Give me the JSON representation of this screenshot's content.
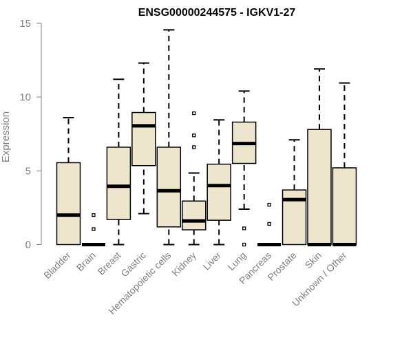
{
  "chart_data": {
    "type": "boxplot",
    "title": "ENSG00000244575 - IGKV1-27",
    "xlabel": "",
    "ylabel": "Expression",
    "ylim": [
      0,
      15
    ],
    "yticks": [
      0,
      5,
      10,
      15
    ],
    "grid": false,
    "colors": {
      "box_fill": "#ede6cc",
      "stroke": "#000000",
      "axis_text": "#808080"
    },
    "boxes": [
      {
        "label": "Bladder",
        "min": 0,
        "q1": 0,
        "median": 2.0,
        "q3": 5.55,
        "max": 8.6,
        "outliers": []
      },
      {
        "label": "Brain",
        "min": 0,
        "q1": 0,
        "median": 0,
        "q3": 0,
        "max": 0,
        "outliers": [
          1.05,
          2.0
        ]
      },
      {
        "label": "Breast",
        "min": 0,
        "q1": 1.7,
        "median": 3.95,
        "q3": 6.6,
        "max": 11.2,
        "outliers": []
      },
      {
        "label": "Gastric",
        "min": 2.1,
        "q1": 5.35,
        "median": 8.05,
        "q3": 8.95,
        "max": 12.3,
        "outliers": []
      },
      {
        "label": "Hematopoietic cells",
        "min": 0,
        "q1": 1.2,
        "median": 3.65,
        "q3": 6.6,
        "max": 14.55,
        "outliers": []
      },
      {
        "label": "Kidney",
        "min": 0,
        "q1": 1.0,
        "median": 1.6,
        "q3": 2.95,
        "max": 4.85,
        "outliers": [
          6.6,
          7.4,
          8.9
        ]
      },
      {
        "label": "Liver",
        "min": 0,
        "q1": 1.65,
        "median": 4.0,
        "q3": 5.45,
        "max": 8.45,
        "outliers": []
      },
      {
        "label": "Lung",
        "min": 2.4,
        "q1": 5.5,
        "median": 6.85,
        "q3": 8.3,
        "max": 10.4,
        "outliers": [
          0,
          1.1
        ]
      },
      {
        "label": "Pancreas",
        "min": 0,
        "q1": 0,
        "median": 0,
        "q3": 0,
        "max": 0,
        "outliers": [
          1.4,
          2.7
        ]
      },
      {
        "label": "Prostate",
        "min": 0,
        "q1": 0,
        "median": 3.05,
        "q3": 3.7,
        "max": 7.1,
        "outliers": []
      },
      {
        "label": "Skin",
        "min": 0,
        "q1": 0,
        "median": 0,
        "q3": 7.8,
        "max": 11.9,
        "outliers": []
      },
      {
        "label": "Unknown / Other",
        "min": 0,
        "q1": 0,
        "median": 0,
        "q3": 5.2,
        "max": 10.95,
        "outliers": []
      }
    ]
  }
}
